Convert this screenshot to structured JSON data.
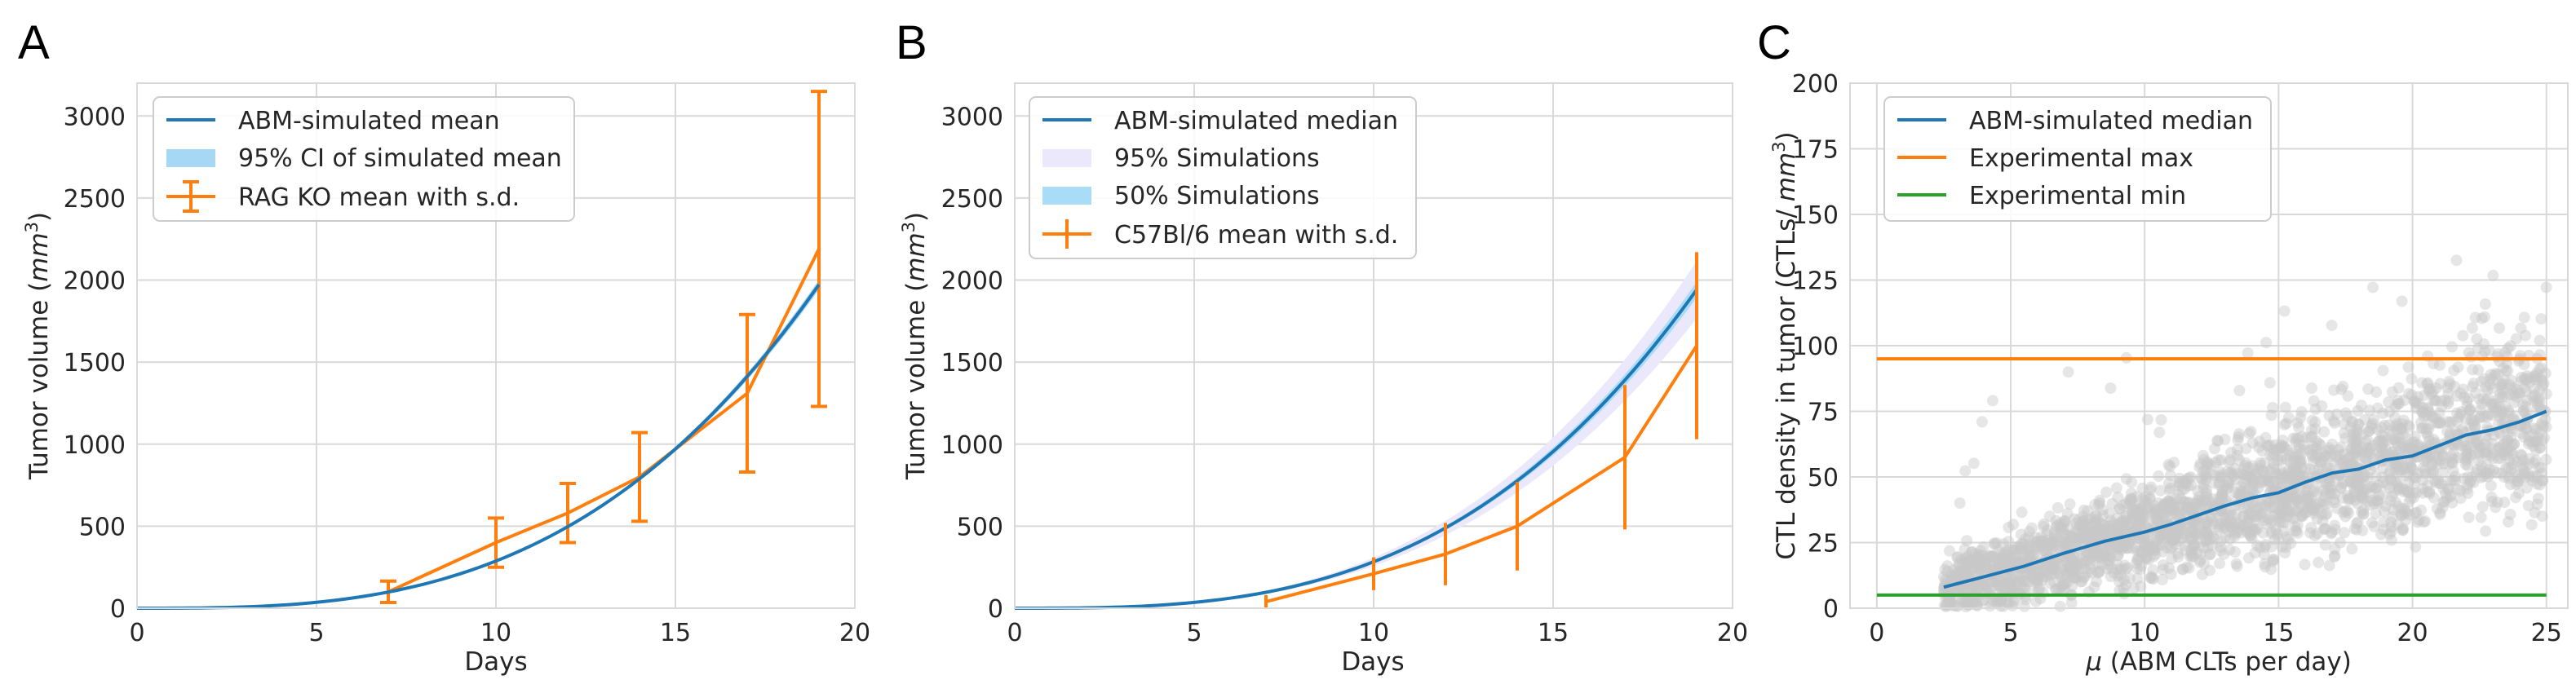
{
  "colors": {
    "blue": "#1f77b4",
    "orange": "#ff7f0e",
    "green": "#2ca02c",
    "ci_fill": "#a6d8f5",
    "band95_fill": "#ebe8fb",
    "band50_fill": "#a9dcf7",
    "scatter": "#c8c8c8",
    "grid": "#d9d9d9"
  },
  "chart_data": [
    {
      "panel": "A",
      "type": "line",
      "xlabel": "Days",
      "ylabel": "Tumor volume (mm³)",
      "ylabel_parts": [
        "Tumor volume (",
        "mm",
        "3",
        ")"
      ],
      "xlim": [
        0,
        20
      ],
      "ylim": [
        0,
        3200
      ],
      "xticks": [
        0,
        5,
        10,
        15,
        20
      ],
      "yticks": [
        0,
        500,
        1000,
        1500,
        2000,
        2500,
        3000
      ],
      "legend": [
        "ABM-simulated mean",
        "95% CI of simulated mean",
        "RAG KO mean with s.d."
      ],
      "series": [
        {
          "name": "ABM-simulated mean",
          "kind": "curve",
          "growth": {
            "a": 0.2875,
            "p": 3
          },
          "x_range": [
            0,
            19
          ],
          "ci_width": 0.015
        },
        {
          "name": "RAG KO mean with s.d.",
          "kind": "errorbar",
          "x": [
            7,
            10,
            12,
            14,
            17,
            19
          ],
          "y": [
            100,
            400,
            580,
            800,
            1310,
            2190
          ],
          "sd": [
            65,
            150,
            180,
            270,
            480,
            960
          ]
        }
      ]
    },
    {
      "panel": "B",
      "type": "line",
      "xlabel": "Days",
      "ylabel": "Tumor volume (mm³)",
      "ylabel_parts": [
        "Tumor volume (",
        "mm",
        "3",
        ")"
      ],
      "xlim": [
        0,
        20
      ],
      "ylim": [
        0,
        3200
      ],
      "xticks": [
        0,
        5,
        10,
        15,
        20
      ],
      "yticks": [
        0,
        500,
        1000,
        1500,
        2000,
        2500,
        3000
      ],
      "legend": [
        "ABM-simulated median",
        "95% Simulations",
        "50% Simulations",
        "C57Bl/6 mean with s.d."
      ],
      "series": [
        {
          "name": "ABM-simulated median",
          "kind": "curve",
          "growth": {
            "a": 0.283,
            "p": 3
          },
          "x_range": [
            0,
            19
          ],
          "band95": 0.09,
          "band50": 0.025
        },
        {
          "name": "C57Bl/6 mean with s.d.",
          "kind": "errorbar",
          "x": [
            7,
            10,
            12,
            14,
            17,
            19
          ],
          "y": [
            40,
            210,
            330,
            500,
            920,
            1600
          ],
          "sd": [
            40,
            100,
            190,
            270,
            440,
            570
          ]
        }
      ]
    },
    {
      "panel": "C",
      "type": "line",
      "xlabel": "μ (ABM CLTs per day)",
      "xlabel_parts": [
        "μ",
        " (ABM CLTs per day)"
      ],
      "ylabel": "CTL density in tumor (CTLs/ mm³)",
      "ylabel_parts": [
        "CTL density in tumor (CTLs/ ",
        "mm",
        "3",
        ")"
      ],
      "xlim": [
        -1,
        25.8
      ],
      "ylim": [
        0,
        200
      ],
      "xticks": [
        0,
        5,
        10,
        15,
        20,
        25
      ],
      "yticks": [
        0,
        25,
        50,
        75,
        100,
        125,
        150,
        175,
        200
      ],
      "legend": [
        "ABM-simulated median",
        "Experimental max",
        "Experimental min"
      ],
      "series": [
        {
          "name": "ABM-simulated median",
          "kind": "line",
          "x": [
            2.5,
            4,
            5.5,
            7,
            8.5,
            10,
            11,
            12,
            13,
            14,
            15,
            16,
            17,
            18,
            19,
            20,
            21,
            22,
            23,
            24,
            25
          ],
          "y": [
            8,
            12,
            16,
            21,
            25.5,
            29,
            32,
            35.5,
            39,
            42,
            44,
            48,
            51.5,
            53,
            56.5,
            58,
            62,
            66,
            68,
            71,
            75
          ]
        },
        {
          "name": "Experimental max",
          "kind": "hline",
          "y": 95,
          "x_range": [
            0,
            25
          ]
        },
        {
          "name": "Experimental min",
          "kind": "hline",
          "y": 5,
          "x_range": [
            0,
            25
          ]
        },
        {
          "name": "ABM simulations",
          "kind": "scatter",
          "x_range": [
            2.5,
            25
          ]
        }
      ]
    }
  ]
}
